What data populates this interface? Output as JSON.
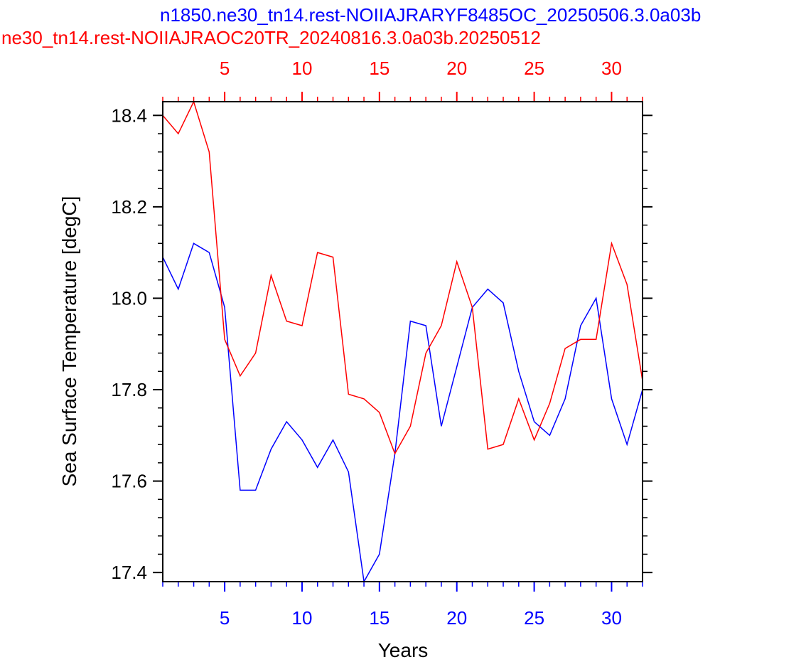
{
  "chart_data": {
    "type": "line",
    "title_top": "n1850.ne30_tn14.rest-NOIIAJRARYF8485OC_20250506.3.0a03b",
    "title_bottom": "ne30_tn14.rest-NOIIAJRAOC20TR_20240816.3.0a03b.20250512",
    "xlabel": "Years",
    "ylabel": "Sea Surface Temperature [degC]",
    "xlim": [
      1,
      32
    ],
    "ylim": [
      17.38,
      18.43
    ],
    "x_ticks": [
      5,
      10,
      15,
      20,
      25,
      30
    ],
    "x_tick_labels": [
      "5",
      "10",
      "15",
      "20",
      "25",
      "30"
    ],
    "y_ticks": [
      17.4,
      17.6,
      17.8,
      18.0,
      18.2,
      18.4
    ],
    "y_tick_labels": [
      "17.4",
      "17.6",
      "17.8",
      "18.0",
      "18.2",
      "18.4"
    ],
    "grid": false,
    "colors": {
      "series_top": "#0000ff",
      "series_bottom": "#ff0000",
      "axes": "#000000"
    },
    "series": [
      {
        "color": "#0000ff",
        "x": [
          1,
          2,
          3,
          4,
          5,
          6,
          7,
          8,
          9,
          10,
          11,
          12,
          13,
          14,
          15,
          16,
          17,
          18,
          19,
          20,
          21,
          22,
          23,
          24,
          25,
          26,
          27,
          28,
          29,
          30,
          31,
          32
        ],
        "values": [
          18.09,
          18.02,
          18.12,
          18.1,
          17.98,
          17.58,
          17.58,
          17.67,
          17.73,
          17.69,
          17.63,
          17.69,
          17.62,
          17.38,
          17.44,
          17.66,
          17.95,
          17.94,
          17.72,
          17.85,
          17.98,
          18.02,
          17.99,
          17.84,
          17.73,
          17.7,
          17.78,
          17.94,
          18.0,
          17.78,
          17.68,
          17.8
        ]
      },
      {
        "color": "#ff0000",
        "x": [
          1,
          2,
          3,
          4,
          5,
          6,
          7,
          8,
          9,
          10,
          11,
          12,
          13,
          14,
          15,
          16,
          17,
          18,
          19,
          20,
          21,
          22,
          23,
          24,
          25,
          26,
          27,
          28,
          29,
          30,
          31,
          32
        ],
        "values": [
          18.4,
          18.36,
          18.43,
          18.32,
          17.91,
          17.83,
          17.88,
          18.05,
          17.95,
          17.94,
          18.1,
          18.09,
          17.79,
          17.78,
          17.75,
          17.66,
          17.72,
          17.88,
          17.94,
          18.08,
          17.98,
          17.67,
          17.68,
          17.78,
          17.69,
          17.77,
          17.89,
          17.91,
          17.91,
          18.12,
          18.03,
          17.82
        ]
      }
    ]
  }
}
